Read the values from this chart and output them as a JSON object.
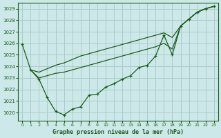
{
  "background_color": "#cce8e8",
  "grid_color": "#aacccc",
  "line_color": "#1a5c1a",
  "marker_color": "#1a5c1a",
  "title": "Graphe pression niveau de la mer (hPa)",
  "xlim": [
    -0.5,
    23.5
  ],
  "ylim": [
    1019.3,
    1029.5
  ],
  "yticks": [
    1020,
    1021,
    1022,
    1023,
    1024,
    1025,
    1026,
    1027,
    1028,
    1029
  ],
  "xticks": [
    0,
    1,
    2,
    3,
    4,
    5,
    6,
    7,
    8,
    9,
    10,
    11,
    12,
    13,
    14,
    15,
    16,
    17,
    18,
    19,
    20,
    21,
    22,
    23
  ],
  "series1": {
    "x": [
      0,
      1,
      2,
      3,
      4,
      5,
      6,
      7,
      8,
      9,
      10,
      11,
      12,
      13,
      14,
      15,
      16,
      17,
      18,
      19,
      20,
      21,
      22,
      23
    ],
    "y": [
      1025.9,
      1023.7,
      1022.9,
      1021.3,
      1020.1,
      1019.8,
      1020.3,
      1020.5,
      1021.5,
      1021.6,
      1022.2,
      1022.5,
      1022.9,
      1023.2,
      1023.9,
      1024.1,
      1024.9,
      1026.7,
      1025.0,
      1027.5,
      1028.1,
      1028.7,
      1029.0,
      1029.2
    ]
  },
  "series2": {
    "x": [
      1,
      2,
      3,
      4,
      5,
      6,
      7,
      8,
      9,
      10,
      11,
      12,
      13,
      14,
      15,
      16,
      17,
      18,
      19,
      20,
      21,
      22,
      23
    ],
    "y": [
      1023.7,
      1023.5,
      1023.8,
      1024.1,
      1024.3,
      1024.6,
      1024.9,
      1025.1,
      1025.3,
      1025.5,
      1025.7,
      1025.9,
      1026.1,
      1026.3,
      1026.5,
      1026.7,
      1026.9,
      1026.5,
      1027.5,
      1028.1,
      1028.7,
      1029.0,
      1029.2
    ]
  },
  "series3": {
    "x": [
      1,
      2,
      3,
      4,
      5,
      6,
      7,
      8,
      9,
      10,
      11,
      12,
      13,
      14,
      15,
      16,
      17,
      18,
      19,
      20,
      21,
      22,
      23
    ],
    "y": [
      1023.7,
      1023.0,
      1023.2,
      1023.4,
      1023.5,
      1023.7,
      1023.9,
      1024.1,
      1024.3,
      1024.5,
      1024.7,
      1024.9,
      1025.1,
      1025.3,
      1025.5,
      1025.7,
      1026.0,
      1025.5,
      1027.5,
      1028.1,
      1028.7,
      1029.0,
      1029.2
    ]
  }
}
